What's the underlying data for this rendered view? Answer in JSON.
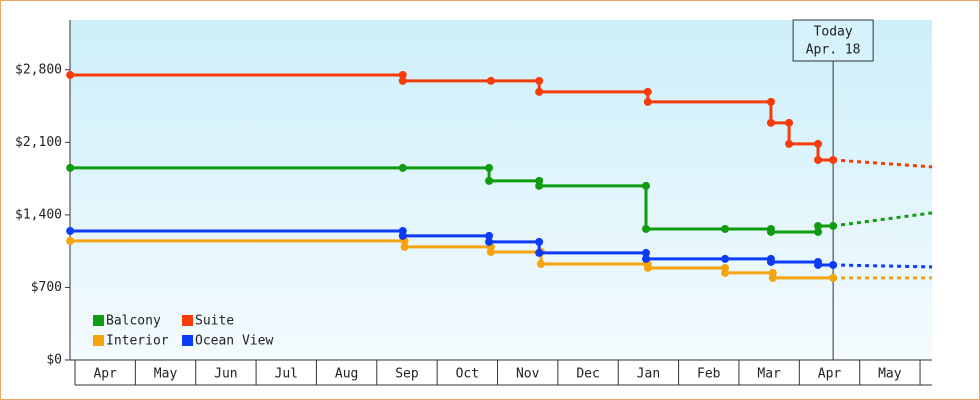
{
  "chart_data": {
    "type": "step-line",
    "xticks": [
      {
        "value": 0,
        "label": "Apr"
      },
      {
        "value": 1,
        "label": "May"
      },
      {
        "value": 2,
        "label": "Jun"
      },
      {
        "value": 3,
        "label": "Jul"
      },
      {
        "value": 4,
        "label": "Aug"
      },
      {
        "value": 5,
        "label": "Sep"
      },
      {
        "value": 6,
        "label": "Oct"
      },
      {
        "value": 7,
        "label": "Nov"
      },
      {
        "value": 8,
        "label": "Dec"
      },
      {
        "value": 9,
        "label": "Jan"
      },
      {
        "value": 10,
        "label": "Feb"
      },
      {
        "value": 11,
        "label": "Mar"
      },
      {
        "value": 12,
        "label": "Apr"
      },
      {
        "value": 13,
        "label": "May"
      },
      {
        "value": 14,
        "label": ""
      }
    ],
    "xlim": [
      -0.08,
      14.2
    ],
    "ylim": [
      0,
      3280
    ],
    "yticks": [
      {
        "value": 0,
        "label": "$0"
      },
      {
        "value": 700,
        "label": "$700"
      },
      {
        "value": 1400,
        "label": "$1,400"
      },
      {
        "value": 2100,
        "label": "$2,100"
      },
      {
        "value": 2800,
        "label": "$2,800"
      }
    ],
    "today": {
      "x": 12.56,
      "label": "Today",
      "date": "Apr. 18"
    },
    "legend": "lower-left",
    "series": [
      {
        "name": "Balcony",
        "color": "#109c10",
        "x": [
          -0.08,
          5.43,
          6.86,
          6.86,
          7.69,
          7.69,
          9.46,
          9.46,
          10.77,
          11.53,
          11.53,
          12.31,
          12.31,
          12.56
        ],
        "values": [
          1853,
          1853,
          1853,
          1728,
          1728,
          1680,
          1680,
          1264,
          1264,
          1264,
          1235,
          1235,
          1293,
          1293
        ],
        "forecast": {
          "x": [
            12.56,
            14.2
          ],
          "values": [
            1293,
            1419
          ]
        }
      },
      {
        "name": "Suite",
        "color": "#f53c0a",
        "x": [
          -0.08,
          5.43,
          5.43,
          6.89,
          7.69,
          7.69,
          9.49,
          9.49,
          11.53,
          11.53,
          11.83,
          11.83,
          12.31,
          12.31,
          12.56
        ],
        "values": [
          2750,
          2750,
          2693,
          2693,
          2693,
          2587,
          2587,
          2490,
          2490,
          2288,
          2288,
          2085,
          2085,
          1930,
          1930
        ],
        "forecast": {
          "x": [
            12.56,
            14.2
          ],
          "values": [
            1930,
            1863
          ]
        }
      },
      {
        "name": "Interior",
        "color": "#f5a40c",
        "x": [
          -0.08,
          5.46,
          5.46,
          6.89,
          6.89,
          7.72,
          7.72,
          9.49,
          9.49,
          10.77,
          10.77,
          11.56,
          11.56,
          12.56
        ],
        "values": [
          1149,
          1149,
          1091,
          1091,
          1042,
          1042,
          926,
          926,
          888,
          888,
          840,
          840,
          792,
          792
        ],
        "forecast": {
          "x": [
            12.56,
            14.2
          ],
          "values": [
            792,
            792
          ]
        }
      },
      {
        "name": "Ocean View",
        "color": "#0c3cf5",
        "x": [
          -0.08,
          5.43,
          5.43,
          6.86,
          6.86,
          7.69,
          7.69,
          9.46,
          9.46,
          10.77,
          11.53,
          11.53,
          12.31,
          12.31,
          12.56
        ],
        "values": [
          1245,
          1245,
          1197,
          1197,
          1139,
          1139,
          1033,
          1033,
          975,
          975,
          975,
          946,
          946,
          917,
          917
        ],
        "forecast": {
          "x": [
            12.56,
            14.2
          ],
          "values": [
            917,
            898
          ]
        }
      }
    ]
  }
}
